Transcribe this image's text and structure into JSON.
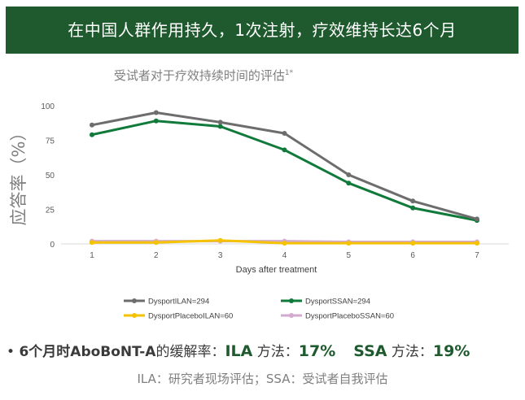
{
  "banner": {
    "title": "在中国人群作用持久，1次注射，疗效维持长达6个月"
  },
  "chart_title": {
    "text": "受试者对于疗效持续时间的评估",
    "sup": "1*"
  },
  "chart_data": {
    "type": "line",
    "title": "受试者对于疗效持续时间的评估",
    "xlabel": "Days after treatment",
    "ylabel": "应答率（%）",
    "x": [
      1,
      2,
      3,
      4,
      5,
      6,
      7
    ],
    "ylim": [
      0,
      100
    ],
    "yticks": [
      0,
      25,
      50,
      75,
      100
    ],
    "grid": false,
    "legend_position": "bottom",
    "series": [
      {
        "name": "DysportILAN=294",
        "color": "#6d6d6d",
        "values": [
          86,
          95,
          88,
          80,
          50,
          31,
          18
        ]
      },
      {
        "name": "DysportSSAN=294",
        "color": "#0f7a3a",
        "values": [
          79,
          89,
          85,
          68,
          44,
          26,
          17
        ]
      },
      {
        "name": "DysportPlaceboILAN=60",
        "color": "#f5c200",
        "values": [
          1,
          1,
          2.5,
          0.5,
          0.5,
          0.5,
          0.5
        ]
      },
      {
        "name": "DysportPlaceboSSAN=60",
        "color": "#d4a9cf",
        "values": [
          2,
          2,
          2,
          2,
          1.5,
          1.5,
          1.5
        ]
      }
    ]
  },
  "bullet": {
    "prefix": "6个月时",
    "drug": "AboBoNT-A",
    "middle": "的缓解率：",
    "ila_label": "ILA",
    "ila_method": " 方法：",
    "ila_value": "17%",
    "ssa_label": "SSA",
    "ssa_method": " 方法：",
    "ssa_value": "19%"
  },
  "footnote": {
    "text": "ILA：研究者现场评估；SSA：受试者自我评估"
  }
}
